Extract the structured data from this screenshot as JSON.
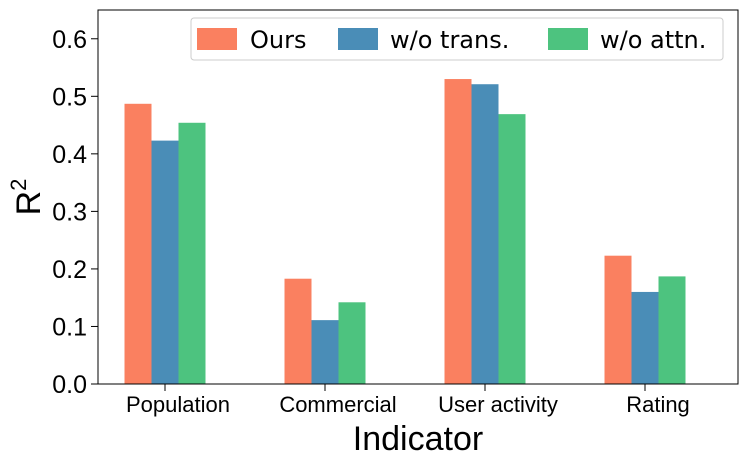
{
  "chart_data": {
    "type": "bar",
    "categories": [
      "Population",
      "Commercial",
      "User activity",
      "Rating"
    ],
    "series": [
      {
        "name": "Ours",
        "color": "#FA8060",
        "values": [
          0.487,
          0.183,
          0.53,
          0.223
        ]
      },
      {
        "name": "w/o trans.",
        "color": "#4A8DB7",
        "values": [
          0.423,
          0.111,
          0.521,
          0.16
        ]
      },
      {
        "name": "w/o attn.",
        "color": "#4DC37F",
        "values": [
          0.454,
          0.142,
          0.469,
          0.187
        ]
      }
    ],
    "xlabel": "Indicator",
    "ylabel": "R",
    "ylabel_superscript": "2",
    "ylim": [
      0,
      0.65
    ],
    "yticks": [
      "0.0",
      "0.1",
      "0.2",
      "0.3",
      "0.4",
      "0.5",
      "0.6"
    ],
    "grid": false,
    "legend_position": "top-right"
  }
}
